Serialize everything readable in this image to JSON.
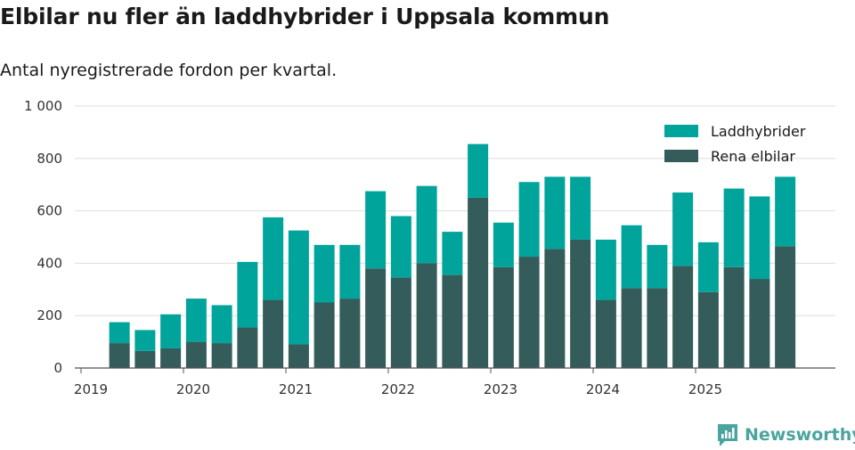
{
  "title": "Elbilar nu fler än laddhybrider i Uppsala kommun",
  "subtitle": "Antal nyregistrerade fordon per kvartal.",
  "brand": "Newsworthy",
  "colors": {
    "laddhybrider": "#00a49b",
    "rena_elbilar": "#335c5a",
    "grid": "#dddddd",
    "axis": "#555555",
    "brand": "#4aa59f"
  },
  "chart_data": {
    "type": "bar",
    "stacked": true,
    "categories": [
      "2019 Q2",
      "2019 Q3",
      "2019 Q4",
      "2020 Q1",
      "2020 Q2",
      "2020 Q3",
      "2020 Q4",
      "2021 Q1",
      "2021 Q2",
      "2021 Q3",
      "2021 Q4",
      "2022 Q1",
      "2022 Q2",
      "2022 Q3",
      "2022 Q4",
      "2023 Q1",
      "2023 Q2",
      "2023 Q3",
      "2023 Q4",
      "2024 Q1",
      "2024 Q2",
      "2024 Q3",
      "2024 Q4",
      "2025 Q1",
      "2025 Q2",
      "2025 Q3",
      "2025 Q4"
    ],
    "series": [
      {
        "name": "Rena elbilar",
        "key": "rena_elbilar",
        "values": [
          95,
          65,
          75,
          100,
          95,
          155,
          260,
          90,
          250,
          265,
          380,
          345,
          400,
          355,
          650,
          385,
          425,
          455,
          490,
          260,
          305,
          305,
          390,
          290,
          385,
          340,
          465
        ]
      },
      {
        "name": "Laddhybrider",
        "key": "laddhybrider",
        "values": [
          80,
          80,
          130,
          165,
          145,
          250,
          315,
          435,
          220,
          205,
          295,
          235,
          295,
          165,
          205,
          170,
          285,
          275,
          240,
          230,
          240,
          165,
          280,
          190,
          300,
          315,
          265
        ]
      }
    ],
    "legend": [
      "Laddhybrider",
      "Rena elbilar"
    ],
    "legend_position": "top-right",
    "y_ticks": [
      0,
      200,
      400,
      600,
      800,
      1000
    ],
    "y_tick_labels": [
      "0",
      "200",
      "400",
      "600",
      "800",
      "1 000"
    ],
    "ylim": [
      0,
      1000
    ],
    "x_ticks": [
      {
        "label": "2019",
        "quarter_index": 0
      },
      {
        "label": "2020",
        "quarter_index": 4
      },
      {
        "label": "2021",
        "quarter_index": 8
      },
      {
        "label": "2022",
        "quarter_index": 12
      },
      {
        "label": "2023",
        "quarter_index": 16
      },
      {
        "label": "2024",
        "quarter_index": 20
      },
      {
        "label": "2025",
        "quarter_index": 24
      }
    ],
    "first_bar_quarter_index": 1,
    "total_quarter_slots": 30,
    "grid": true
  }
}
